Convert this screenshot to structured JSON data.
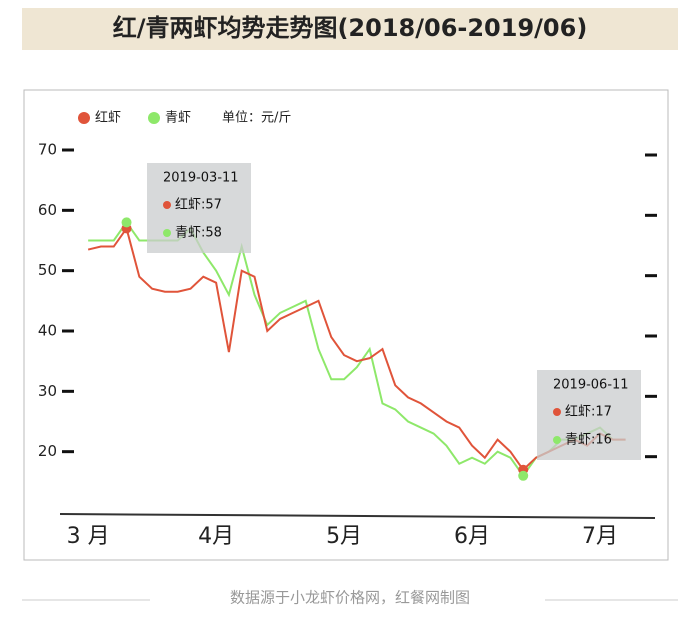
{
  "chart_data": {
    "type": "line",
    "title": "红/青两虾均势走势图(2018/06-2019/06)",
    "unit": "单位：元/斤",
    "source": "数据源于小龙虾价格网，红餐网制图",
    "x": [
      3.0,
      3.1,
      3.2,
      3.3,
      3.4,
      3.5,
      3.6,
      3.7,
      3.8,
      3.9,
      4.0,
      4.1,
      4.2,
      4.3,
      4.4,
      4.5,
      4.6,
      4.7,
      4.8,
      4.9,
      5.0,
      5.1,
      5.2,
      5.3,
      5.4,
      5.5,
      5.6,
      5.7,
      5.8,
      5.9,
      6.0,
      6.1,
      6.2,
      6.3,
      6.4,
      6.5,
      6.6,
      6.7,
      6.8,
      6.9,
      7.0,
      7.1,
      7.2
    ],
    "series": [
      {
        "name": "红虾",
        "color": "#e0543a",
        "values": [
          53.5,
          54,
          54,
          57,
          49,
          47,
          46.5,
          46.5,
          47,
          49,
          48,
          36.5,
          50,
          49,
          40,
          42,
          43,
          44,
          45,
          39,
          36,
          35,
          35.5,
          37,
          31,
          29,
          28,
          26.5,
          25,
          24,
          21,
          19,
          22,
          20,
          17,
          19,
          20,
          21,
          22,
          21,
          23,
          22,
          22
        ]
      },
      {
        "name": "青虾",
        "color": "#8ee86a",
        "values": [
          55,
          55,
          55,
          58,
          55,
          55,
          55,
          55,
          57,
          53,
          50,
          46,
          54,
          46,
          41,
          43,
          44,
          45,
          37,
          32,
          32,
          34,
          37,
          28,
          27,
          25,
          24,
          23,
          21,
          18,
          19,
          18,
          20,
          19,
          16,
          19,
          20,
          22,
          22,
          23,
          24,
          22,
          22
        ]
      }
    ],
    "tooltips": [
      {
        "date": "2019-03-11",
        "values": [
          57,
          58
        ],
        "value_labels": [
          "红虾:57",
          "青虾:58"
        ]
      },
      {
        "date": "2019-06-11",
        "values": [
          17,
          16
        ],
        "value_labels": [
          "红虾:17",
          "青虾:16"
        ]
      }
    ],
    "xlim": [
      2.78,
      7.43
    ],
    "xticks": [
      {
        "value": 3,
        "label": "3 月"
      },
      {
        "value": 4,
        "label": "4月"
      },
      {
        "value": 5,
        "label": "5月"
      },
      {
        "value": 6,
        "label": "6月"
      },
      {
        "value": 7,
        "label": "7月"
      }
    ],
    "ylim": [
      10,
      70
    ],
    "yticks": [
      20,
      30,
      40,
      50,
      60,
      70
    ]
  }
}
